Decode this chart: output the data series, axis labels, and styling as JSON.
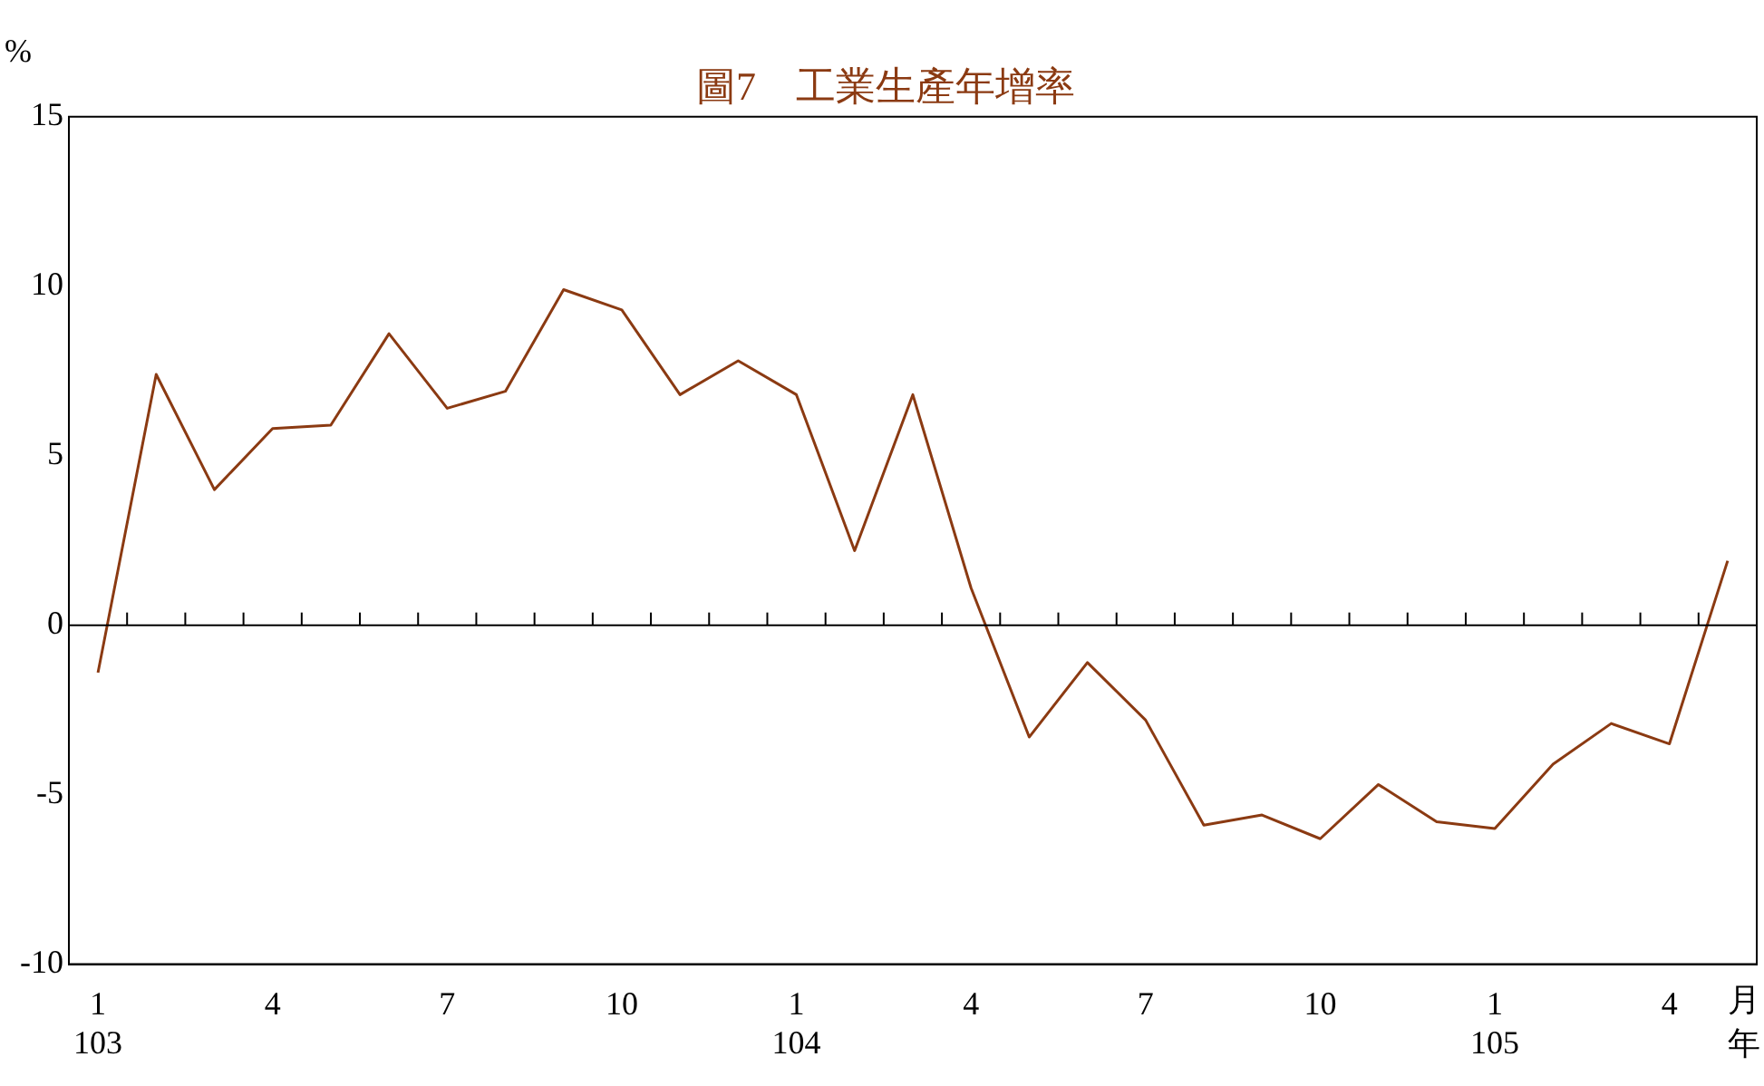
{
  "chart_data": {
    "type": "line",
    "title": "圖7　工業生產年增率",
    "ylabel": "%",
    "xlabel": "月年",
    "categories": [
      "1\n103",
      null,
      null,
      "4",
      null,
      null,
      "7",
      null,
      null,
      "10",
      null,
      null,
      "1\n104",
      null,
      null,
      "4",
      null,
      null,
      "7",
      null,
      null,
      "10",
      null,
      null,
      "1\n105",
      null,
      null,
      "4",
      null
    ],
    "series": [
      {
        "color": "#8b3a12",
        "values": [
          -1.4,
          7.4,
          4.0,
          5.8,
          5.9,
          8.6,
          6.4,
          6.9,
          9.9,
          9.3,
          6.8,
          7.8,
          6.8,
          2.2,
          6.8,
          1.1,
          -3.3,
          -1.1,
          -2.8,
          -5.9,
          -5.6,
          -6.3,
          -4.7,
          -5.8,
          -6.0,
          -4.1,
          -2.9,
          -3.5,
          1.9
        ]
      }
    ],
    "ylim": [
      -10,
      15
    ],
    "yticks": [
      -10,
      -5,
      0,
      5,
      10,
      15
    ],
    "grid": false,
    "ref_lines": [
      {
        "axis": "y",
        "value": 0,
        "color": "#000000"
      }
    ],
    "legend": false,
    "marker": "none",
    "line_style": "solid"
  }
}
